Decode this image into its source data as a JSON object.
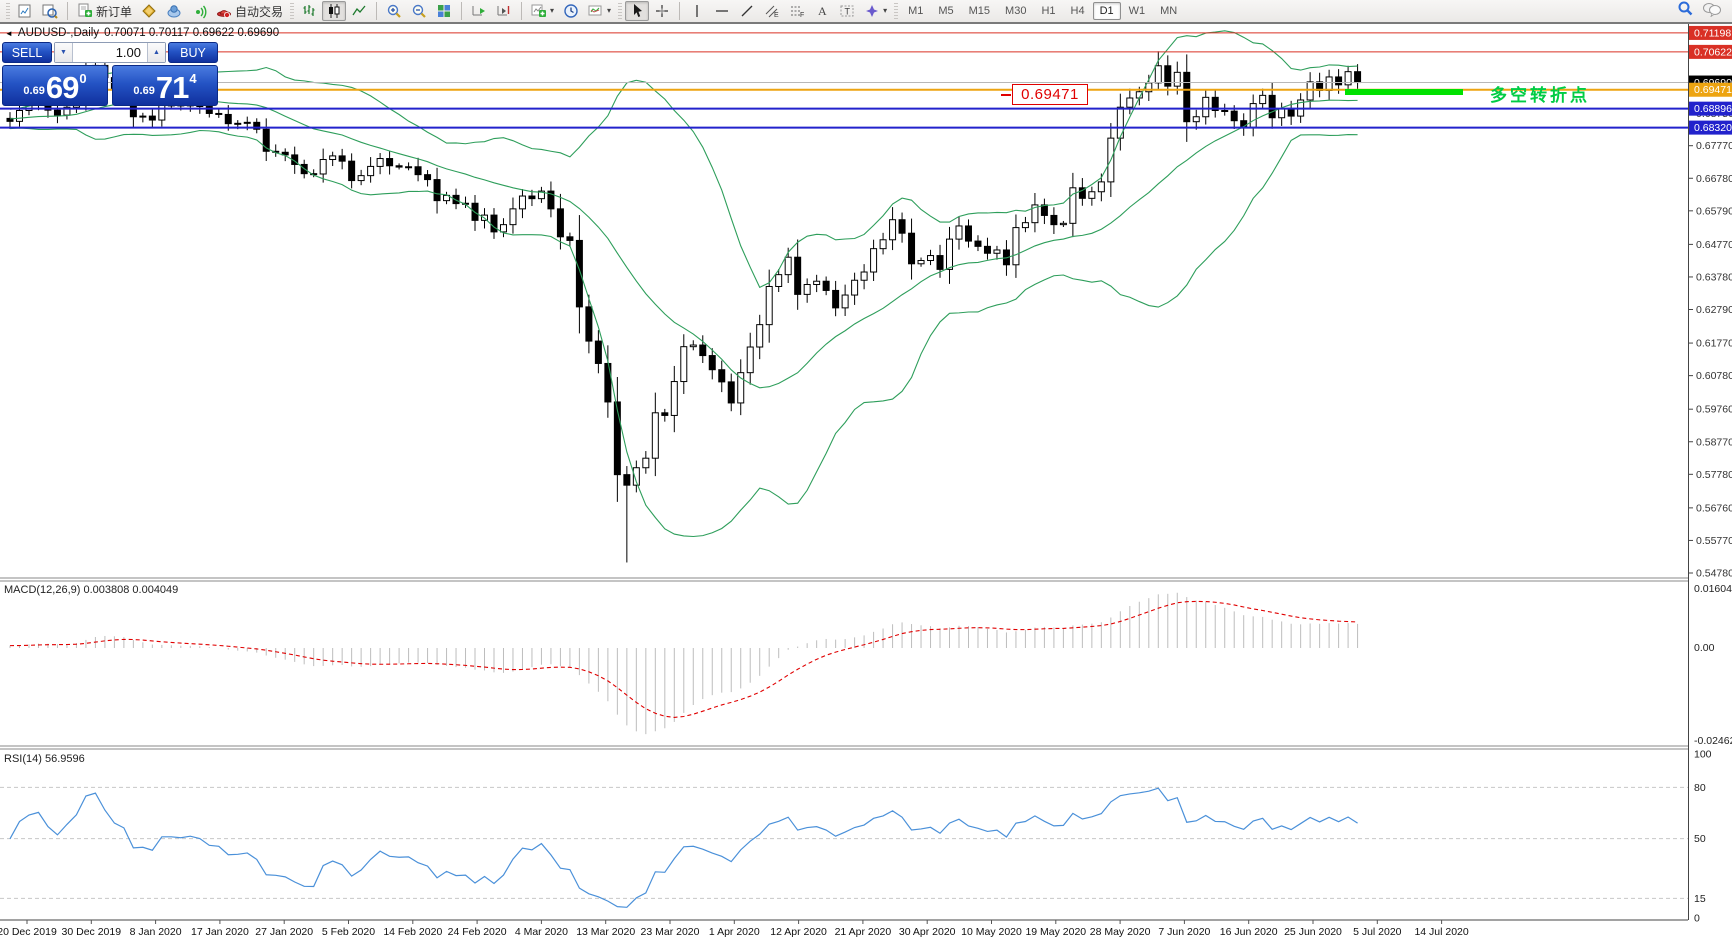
{
  "toolbar": {
    "new_order_label": "新订单",
    "autotrading_label": "自动交易",
    "timeframes": [
      "M1",
      "M5",
      "M15",
      "M30",
      "H1",
      "H4",
      "D1",
      "W1",
      "MN"
    ],
    "active_timeframe": "D1"
  },
  "chart": {
    "title": "AUDUSD-,Daily",
    "ohlc_line": "0.70071 0.70117 0.69622 0.69690"
  },
  "trade_panel": {
    "sell_label": "SELL",
    "buy_label": "BUY",
    "volume": "1.00",
    "sell_price_small": "0.69",
    "sell_price_big": "69",
    "sell_price_sup": "0",
    "buy_price_small": "0.69",
    "buy_price_big": "71",
    "buy_price_sup": "4"
  },
  "annotations": {
    "price_callout": "0.69471",
    "turning_point_text": "多空转折点",
    "green_bar_color": "#00e100",
    "green_text_color": "#00cc44",
    "callout_color": "#e00000"
  },
  "macd_panel": {
    "label": "MACD(12,26,9) 0.003808 0.004049",
    "max_label": "0.016048",
    "zero_label": "0.00",
    "min_label": "-0.024625"
  },
  "rsi_panel": {
    "label": "RSI(14) 56.9596",
    "level_labels": [
      "100",
      "80",
      "50",
      "15",
      "0"
    ]
  },
  "price_axis": {
    "ticks": [
      "0.70730",
      "0.69740",
      "0.68750",
      "0.67770",
      "0.66780",
      "0.65790",
      "0.64770",
      "0.63780",
      "0.62790",
      "0.61770",
      "0.60780",
      "0.59760",
      "0.58770",
      "0.57780",
      "0.56760",
      "0.55770",
      "0.54780"
    ],
    "badges": [
      {
        "value": "0.71198",
        "color": "#d93025"
      },
      {
        "value": "0.70622",
        "color": "#d93025"
      },
      {
        "value": "0.69690",
        "color": "#000000"
      },
      {
        "value": "0.69471",
        "color": "#eda411"
      },
      {
        "value": "0.68896",
        "color": "#2222cc"
      },
      {
        "value": "0.68320",
        "color": "#2222cc"
      }
    ]
  },
  "time_axis": {
    "labels": [
      "20 Dec 2019",
      "30 Dec 2019",
      "8 Jan 2020",
      "17 Jan 2020",
      "27 Jan 2020",
      "5 Feb 2020",
      "14 Feb 2020",
      "24 Feb 2020",
      "4 Mar 2020",
      "13 Mar 2020",
      "23 Mar 2020",
      "1 Apr 2020",
      "12 Apr 2020",
      "21 Apr 2020",
      "30 Apr 2020",
      "10 May 2020",
      "19 May 2020",
      "28 May 2020",
      "7 Jun 2020",
      "16 Jun 2020",
      "25 Jun 2020",
      "5 Jul 2020",
      "14 Jul 2020"
    ]
  },
  "chart_data": {
    "type": "candlestick",
    "symbol": "AUDUSD",
    "timeframe": "Daily",
    "bid": 0.6969,
    "ask": 0.69714,
    "y_axis_range": [
      0.5463,
      0.7147
    ],
    "indicators": {
      "bollinger": {
        "period": 20,
        "deviation": 2,
        "color": "#2e9e5b"
      },
      "macd": {
        "fast": 12,
        "slow": 26,
        "signal": 9,
        "current": 0.003808,
        "signal_current": 0.004049,
        "range": [
          -0.024625,
          0.016048
        ]
      },
      "rsi": {
        "period": 14,
        "current": 56.9596,
        "levels": [
          80,
          50,
          15
        ],
        "range": [
          0,
          100
        ]
      }
    },
    "hlines": [
      {
        "price": 0.71198,
        "color": "#d93025",
        "width": 1
      },
      {
        "price": 0.70622,
        "color": "#d93025",
        "width": 1
      },
      {
        "price": 0.6969,
        "color": "#b8b8b8",
        "width": 1
      },
      {
        "price": 0.69471,
        "color": "#eda411",
        "width": 2
      },
      {
        "price": 0.68896,
        "color": "#2222cc",
        "width": 2
      },
      {
        "price": 0.6832,
        "color": "#2222cc",
        "width": 2
      }
    ],
    "spike_low": {
      "index": 65,
      "low": 0.551
    },
    "spike_high": {
      "index": 121,
      "high": 0.7064
    },
    "preroll_closes": [
      0.684,
      0.685,
      0.6858,
      0.687,
      0.6855,
      0.6862,
      0.6848,
      0.684,
      0.6852,
      0.6845,
      0.6838,
      0.6846,
      0.6858,
      0.687,
      0.688,
      0.689,
      0.6885,
      0.6872,
      0.686
    ],
    "closes": [
      0.6851,
      0.6884,
      0.69,
      0.6907,
      0.6885,
      0.687,
      0.6894,
      0.6921,
      0.7003,
      0.7021,
      0.6984,
      0.695,
      0.6936,
      0.6865,
      0.6867,
      0.6855,
      0.6901,
      0.6901,
      0.6898,
      0.6903,
      0.6896,
      0.6875,
      0.6872,
      0.6844,
      0.6845,
      0.6848,
      0.6827,
      0.676,
      0.6757,
      0.6749,
      0.672,
      0.6692,
      0.6691,
      0.6735,
      0.6746,
      0.673,
      0.6671,
      0.6686,
      0.6714,
      0.6738,
      0.6716,
      0.6712,
      0.6713,
      0.6689,
      0.6674,
      0.661,
      0.6626,
      0.6601,
      0.6602,
      0.655,
      0.6566,
      0.6515,
      0.6537,
      0.6585,
      0.6624,
      0.6616,
      0.6639,
      0.6585,
      0.65,
      0.6489,
      0.6287,
      0.6183,
      0.6115,
      0.5998,
      0.5777,
      0.5745,
      0.5798,
      0.5827,
      0.5965,
      0.5957,
      0.606,
      0.6166,
      0.6171,
      0.6139,
      0.6096,
      0.6059,
      0.5995,
      0.6087,
      0.6165,
      0.6233,
      0.6349,
      0.6385,
      0.6438,
      0.6325,
      0.6355,
      0.6365,
      0.6337,
      0.6284,
      0.6323,
      0.6368,
      0.6393,
      0.6464,
      0.6491,
      0.6552,
      0.6511,
      0.6418,
      0.6428,
      0.6443,
      0.6401,
      0.6493,
      0.6533,
      0.6487,
      0.6471,
      0.645,
      0.646,
      0.6415,
      0.6528,
      0.6543,
      0.6597,
      0.6565,
      0.6537,
      0.6541,
      0.6649,
      0.6617,
      0.6637,
      0.6667,
      0.68,
      0.6894,
      0.6922,
      0.6941,
      0.6968,
      0.702,
      0.6958,
      0.7,
      0.685,
      0.6865,
      0.6924,
      0.6884,
      0.6882,
      0.6853,
      0.6833,
      0.6905,
      0.693,
      0.6862,
      0.689,
      0.6867,
      0.6916,
      0.6971,
      0.6945,
      0.6986,
      0.6962,
      0.7002,
      0.6969
    ]
  }
}
